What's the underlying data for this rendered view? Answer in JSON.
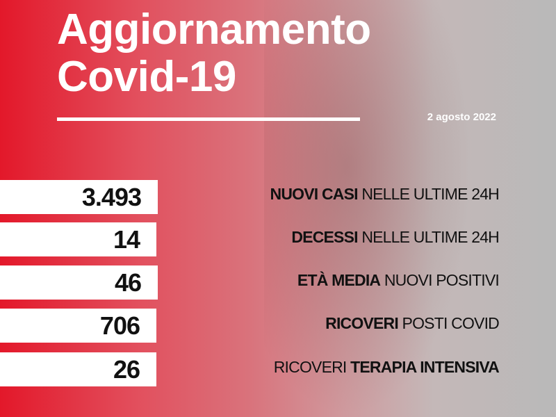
{
  "header": {
    "title_line1": "Aggiornamento",
    "title_line2": "Covid-19",
    "date": "2 agosto 2022"
  },
  "stats": [
    {
      "value": "3.493",
      "bold": "NUOVI CASI",
      "normal": "NELLE ULTIME 24H",
      "bold_first": true
    },
    {
      "value": "14",
      "bold": "DECESSI",
      "normal": "NELLE ULTIME 24H",
      "bold_first": true
    },
    {
      "value": "46",
      "bold": "ETÀ MEDIA",
      "normal": "NUOVI POSITIVI",
      "bold_first": true
    },
    {
      "value": "706",
      "bold": "RICOVERI",
      "normal": "POSTI COVID",
      "bold_first": true
    },
    {
      "value": "26",
      "normal": "RICOVERI",
      "bold": "TERAPIA INTENSIVA",
      "bold_first": false
    }
  ],
  "colors": {
    "accent": "#e3182a",
    "background_right": "#b9b9b9",
    "text": "#111111"
  }
}
